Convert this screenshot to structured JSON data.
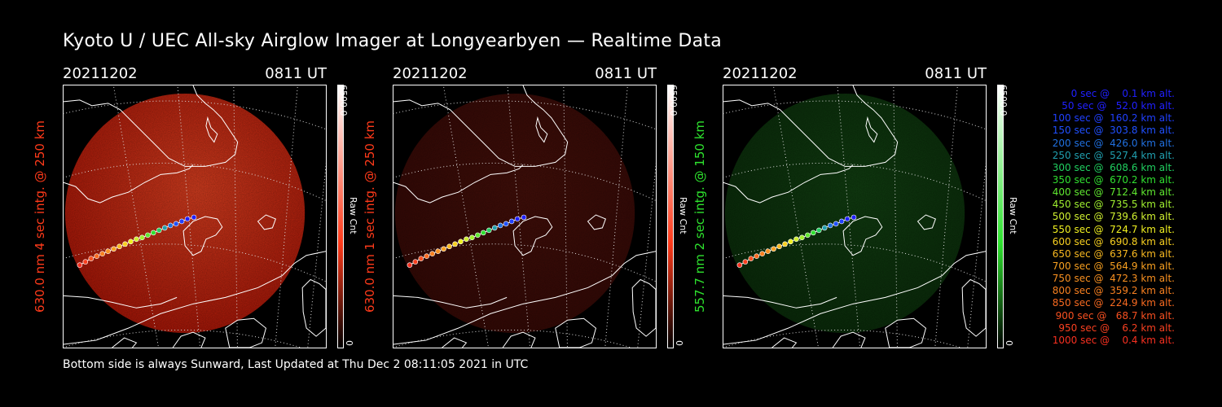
{
  "title": "Kyoto U / UEC All-sky Airglow Imager at Longyearbyen — Realtime Data",
  "footer": "Bottom side is always Sunward, Last Updated at Thu Dec  2 08:11:05 2021 in UTC",
  "panels": [
    {
      "date": "20211202",
      "time": "0811 UT",
      "ylabel": "630.0 nm 4 sec intg. @ 250 km",
      "label_color": "#ff3a1a",
      "colorbar_max": "6500.0",
      "colorbar_min": "0",
      "colorbar_label": "Raw Cnt",
      "glow": "#b01808",
      "glow_hi": "#e04020",
      "intensity": 0.95
    },
    {
      "date": "20211202",
      "time": "0811 UT",
      "ylabel": "630.0 nm 1 sec intg. @ 250 km",
      "label_color": "#ff3a1a",
      "colorbar_max": "6500.0",
      "colorbar_min": "0",
      "colorbar_label": "Raw Cnt",
      "glow": "#3a0a06",
      "glow_hi": "#4a100a",
      "intensity": 0.9
    },
    {
      "date": "20211202",
      "time": "0811 UT",
      "ylabel": "557.7 nm 2 sec intg. @ 150 km",
      "label_color": "#2ee22e",
      "colorbar_max": "6500.0",
      "colorbar_min": "0",
      "colorbar_label": "Raw Cnt",
      "glow": "#0b300b",
      "glow_hi": "#124412",
      "intensity": 0.9
    }
  ],
  "legend": [
    {
      "text": "   0 sec @    0.1 km alt.",
      "color": "#2020ff"
    },
    {
      "text": "  50 sec @   52.0 km alt.",
      "color": "#2020ff"
    },
    {
      "text": " 100 sec @  160.2 km alt.",
      "color": "#2040ff"
    },
    {
      "text": " 150 sec @  303.8 km alt.",
      "color": "#2050ff"
    },
    {
      "text": " 200 sec @  426.0 km alt.",
      "color": "#2070e0"
    },
    {
      "text": " 250 sec @  527.4 km alt.",
      "color": "#20a0b0"
    },
    {
      "text": " 300 sec @  608.6 km alt.",
      "color": "#20d060"
    },
    {
      "text": " 350 sec @  670.2 km alt.",
      "color": "#30e030"
    },
    {
      "text": " 400 sec @  712.4 km alt.",
      "color": "#60e830"
    },
    {
      "text": " 450 sec @  735.5 km alt.",
      "color": "#a0f030"
    },
    {
      "text": " 500 sec @  739.6 km alt.",
      "color": "#d0f030"
    },
    {
      "text": " 550 sec @  724.7 km alt.",
      "color": "#f0f020"
    },
    {
      "text": " 600 sec @  690.8 km alt.",
      "color": "#f8d020"
    },
    {
      "text": " 650 sec @  637.6 km alt.",
      "color": "#f8b820"
    },
    {
      "text": " 700 sec @  564.9 km alt.",
      "color": "#f8a020"
    },
    {
      "text": " 750 sec @  472.3 km alt.",
      "color": "#f89020"
    },
    {
      "text": " 800 sec @  359.2 km alt.",
      "color": "#f88020"
    },
    {
      "text": " 850 sec @  224.9 km alt.",
      "color": "#f86a20"
    },
    {
      "text": " 900 sec @   68.7 km alt.",
      "color": "#f85020"
    },
    {
      "text": " 950 sec @    6.2 km alt.",
      "color": "#f84020"
    },
    {
      "text": "1000 sec @    0.4 km alt.",
      "color": "#f83020"
    }
  ]
}
